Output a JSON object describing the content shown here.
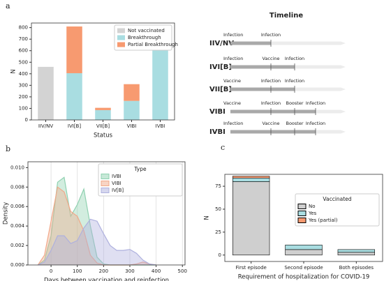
{
  "chart_data": [
    {
      "type": "bar",
      "stacked": true,
      "panel": "a",
      "xlabel": "Status",
      "ylabel": "N",
      "categories": [
        "IIV/NV",
        "IVI[B]",
        "VII[B]",
        "VIBI",
        "IVBI"
      ],
      "series": [
        {
          "name": "Not vaccinated",
          "color": "#d3d3d3",
          "values": [
            460,
            0,
            0,
            0,
            0
          ]
        },
        {
          "name": "Breakthrough",
          "color": "#a9dde1",
          "values": [
            0,
            405,
            85,
            165,
            630
          ]
        },
        {
          "name": "Partial Breakthrough",
          "color": "#f79a70",
          "values": [
            0,
            405,
            20,
            145,
            0
          ]
        }
      ],
      "ylim": [
        0,
        840
      ],
      "yticks": [
        0,
        100,
        200,
        300,
        400,
        500,
        600,
        700,
        800
      ],
      "legend": "upper right"
    },
    {
      "type": "density",
      "panel": "b",
      "xlabel": "Days between vaccination and reinfection",
      "ylabel": "Density",
      "legend_title": "Type",
      "grid": true,
      "x": [
        -50,
        -25,
        0,
        25,
        50,
        75,
        100,
        125,
        150,
        175,
        200,
        225,
        250,
        275,
        300,
        325,
        350,
        375,
        400
      ],
      "series": [
        {
          "name": "IVBI",
          "color": "#8fd1b0",
          "values": [
            0,
            0.0005,
            0.003,
            0.0085,
            0.009,
            0.005,
            0.0062,
            0.0078,
            0.004,
            0.0008,
            0.0001,
            0,
            0,
            0,
            0,
            0,
            0,
            0,
            0
          ]
        },
        {
          "name": "VIBI",
          "color": "#f1a98a",
          "values": [
            0,
            0.001,
            0.0045,
            0.008,
            0.0075,
            0.0055,
            0.005,
            0.0035,
            0.001,
            0.0002,
            0,
            0,
            0,
            0,
            0,
            0.0001,
            0.0003,
            0.0001,
            0
          ]
        },
        {
          "name": "IV[B]",
          "color": "#aeb0de",
          "values": [
            0,
            0.0003,
            0.0015,
            0.003,
            0.003,
            0.0022,
            0.0025,
            0.0038,
            0.0047,
            0.0045,
            0.0032,
            0.002,
            0.0015,
            0.0015,
            0.0016,
            0.0012,
            0.0005,
            0.0001,
            0
          ]
        }
      ],
      "xlim": [
        -88,
        510
      ],
      "xticks": [
        0,
        100,
        200,
        300,
        400,
        500
      ],
      "ylim": [
        0,
        0.0106
      ],
      "yticks": [
        {
          "value": 0,
          "label": "0.000"
        },
        {
          "value": 0.002,
          "label": "0.002"
        },
        {
          "value": 0.004,
          "label": "0.004"
        },
        {
          "value": 0.006,
          "label": "0.006"
        },
        {
          "value": 0.008,
          "label": "0.008"
        },
        {
          "value": 0.01,
          "label": "0.010"
        }
      ],
      "legend": "upper right"
    },
    {
      "type": "bar",
      "stacked": true,
      "panel": "c",
      "xlabel": "Requirement of hospitalization for COVID-19",
      "ylabel": "N",
      "legend_title": "Vaccinated",
      "edgecolor": "#000000",
      "categories": [
        "First episode",
        "Second episode",
        "Both episodes"
      ],
      "series": [
        {
          "name": "No",
          "color": "#cfcfcf",
          "values": [
            80,
            6,
            3
          ]
        },
        {
          "name": "Yes",
          "color": "#a9dde1",
          "values": [
            4,
            5,
            3
          ]
        },
        {
          "name": "Yes (partial)",
          "color": "#f79a70",
          "values": [
            2,
            0,
            0
          ]
        }
      ],
      "ylim": [
        -7,
        88
      ],
      "yticks": [
        0,
        25,
        50,
        75
      ],
      "legend": "upper right"
    }
  ],
  "timeline": {
    "title": "Timeline",
    "rows": [
      {
        "label": "IIV/NV",
        "events": [
          "Infection",
          "Infection"
        ]
      },
      {
        "label": "IVI[B]",
        "events": [
          "Infection",
          "Vaccine",
          "Infection"
        ]
      },
      {
        "label": "VII[B]",
        "events": [
          "Vaccine",
          "Infection",
          "Infection"
        ]
      },
      {
        "label": "VIBI",
        "events": [
          "Vaccine",
          "Infection",
          "Booster",
          "Infection"
        ]
      },
      {
        "label": "IVBI",
        "events": [
          "Infection",
          "Vaccine",
          "Booster",
          "Infection"
        ]
      }
    ]
  }
}
